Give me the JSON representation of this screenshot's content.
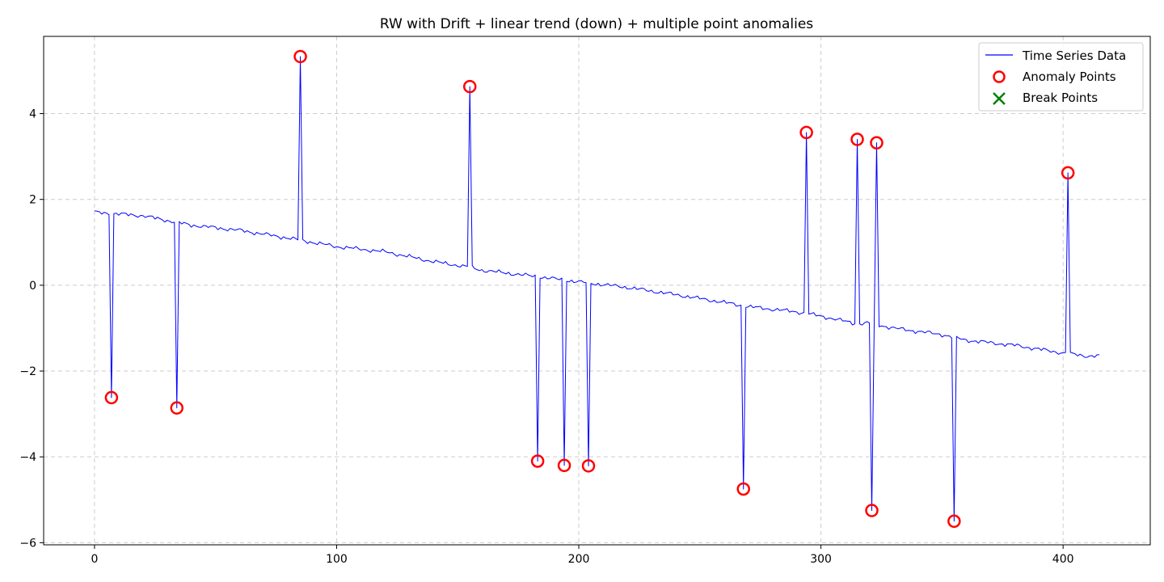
{
  "chart_data": {
    "type": "line",
    "title": "RW with Drift + linear trend (down) + multiple point anomalies",
    "xlabel": "",
    "ylabel": "",
    "xlim": [
      -21,
      436
    ],
    "ylim": [
      -6.05,
      5.8
    ],
    "x_ticks": [
      0,
      100,
      200,
      300,
      400
    ],
    "y_ticks": [
      -6,
      -4,
      -2,
      0,
      2,
      4
    ],
    "grid": true,
    "legend_position": "top-right",
    "legend": [
      {
        "label": "Time Series Data",
        "marker": "line",
        "color": "#0000ff"
      },
      {
        "label": "Anomaly Points",
        "marker": "circle",
        "color": "#ff0000"
      },
      {
        "label": "Break Points",
        "marker": "x",
        "color": "#008000"
      }
    ],
    "series": [
      {
        "name": "Time Series Data",
        "color": "#0000ff",
        "n_points": 416,
        "baseline": [
          [
            0,
            1.7
          ],
          [
            20,
            1.62
          ],
          [
            40,
            1.4
          ],
          [
            60,
            1.28
          ],
          [
            80,
            1.1
          ],
          [
            100,
            0.9
          ],
          [
            120,
            0.78
          ],
          [
            140,
            0.55
          ],
          [
            155,
            0.42
          ],
          [
            160,
            0.35
          ],
          [
            180,
            0.22
          ],
          [
            190,
            0.15
          ],
          [
            200,
            0.08
          ],
          [
            220,
            -0.05
          ],
          [
            240,
            -0.22
          ],
          [
            260,
            -0.4
          ],
          [
            270,
            -0.5
          ],
          [
            290,
            -0.62
          ],
          [
            300,
            -0.72
          ],
          [
            315,
            -0.9
          ],
          [
            320,
            -0.88
          ],
          [
            330,
            -1.0
          ],
          [
            350,
            -1.15
          ],
          [
            360,
            -1.28
          ],
          [
            380,
            -1.4
          ],
          [
            400,
            -1.58
          ],
          [
            410,
            -1.65
          ],
          [
            415,
            -1.65
          ]
        ]
      },
      {
        "name": "Anomaly Points",
        "color": "#ff0000",
        "points": [
          [
            7,
            -2.62
          ],
          [
            34,
            -2.86
          ],
          [
            85,
            5.33
          ],
          [
            155,
            4.63
          ],
          [
            183,
            -4.1
          ],
          [
            194,
            -4.2
          ],
          [
            204,
            -4.21
          ],
          [
            268,
            -4.75
          ],
          [
            294,
            3.56
          ],
          [
            315,
            3.4
          ],
          [
            321,
            -5.25
          ],
          [
            323,
            3.32
          ],
          [
            355,
            -5.5
          ],
          [
            402,
            2.62
          ]
        ]
      },
      {
        "name": "Break Points",
        "color": "#008000",
        "points": []
      }
    ]
  }
}
